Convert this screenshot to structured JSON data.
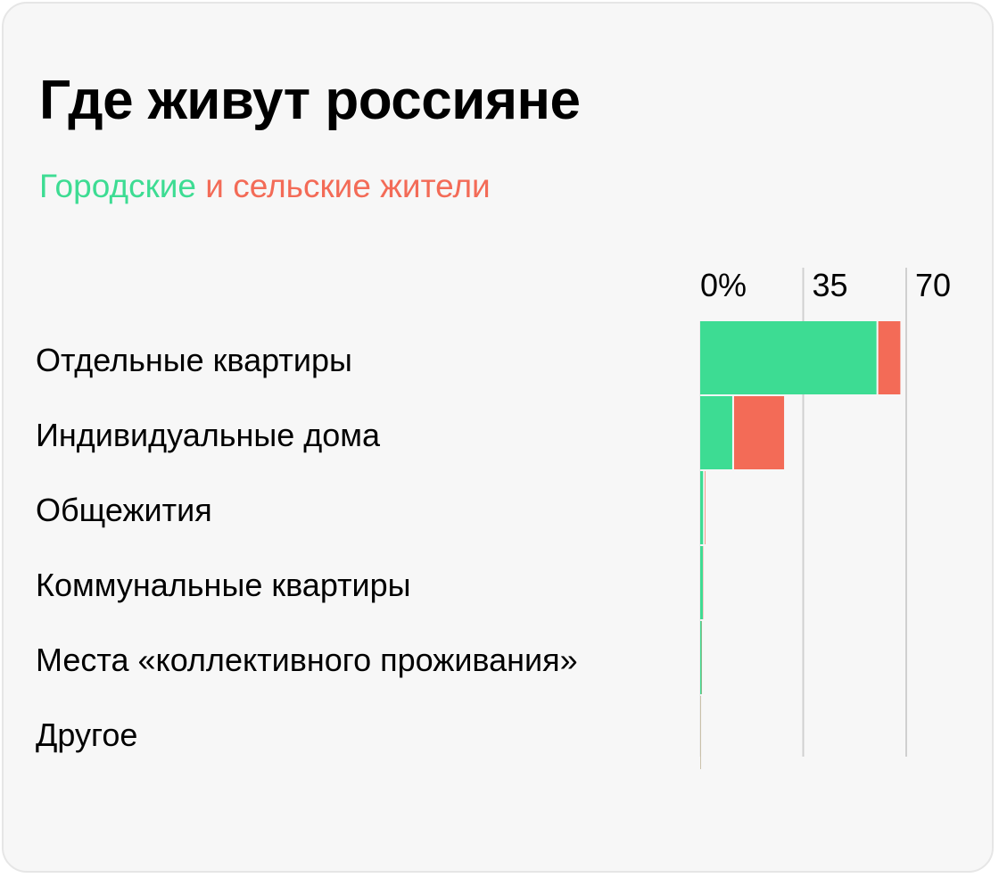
{
  "header": {
    "title": "Где живут россияне",
    "subtitle_urban": "Городские",
    "subtitle_rest": " и сельские жители"
  },
  "colors": {
    "urban": "#3ddc93",
    "rural": "#f36b57"
  },
  "chart_data": {
    "type": "bar",
    "orientation": "horizontal",
    "stacked": true,
    "title": "Где живут россияне",
    "subtitle": "Городские и сельские жители",
    "categories": [
      "Отдельные квартиры",
      "Индивидуальные дома",
      "Общежития",
      "Коммунальные квартиры",
      "Места «коллективного проживания»",
      "Другое"
    ],
    "series": [
      {
        "name": "Городские",
        "color": "#3ddc93",
        "values": [
          60.5,
          11.5,
          1.6,
          0.9,
          0.5,
          0.1
        ]
      },
      {
        "name": "Сельские",
        "color": "#f36b57",
        "values": [
          7.5,
          17.0,
          0.2,
          0.1,
          0.1,
          0.1
        ]
      }
    ],
    "xlim": [
      0,
      70
    ],
    "ticks": [
      {
        "value": 0,
        "label": "0%"
      },
      {
        "value": 35,
        "label": "35"
      },
      {
        "value": 70,
        "label": "70"
      }
    ],
    "grid": true
  }
}
